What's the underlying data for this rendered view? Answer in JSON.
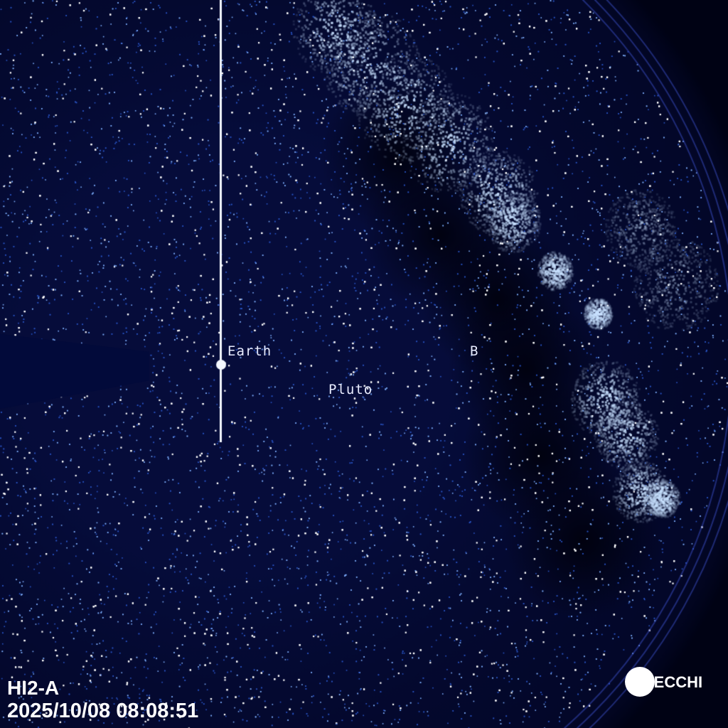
{
  "image": {
    "instrument": "HI2-A",
    "timestamp": "2025/10/08 08:08:51",
    "logo_text": "SECCHI",
    "labels": {
      "earth": "Earth",
      "pluto": "Pluto",
      "b": "B"
    },
    "colors": {
      "background": "#01041c",
      "stars": "#7fb0ff",
      "cloud": "#e8f2ff",
      "text": "#ffffff"
    }
  }
}
